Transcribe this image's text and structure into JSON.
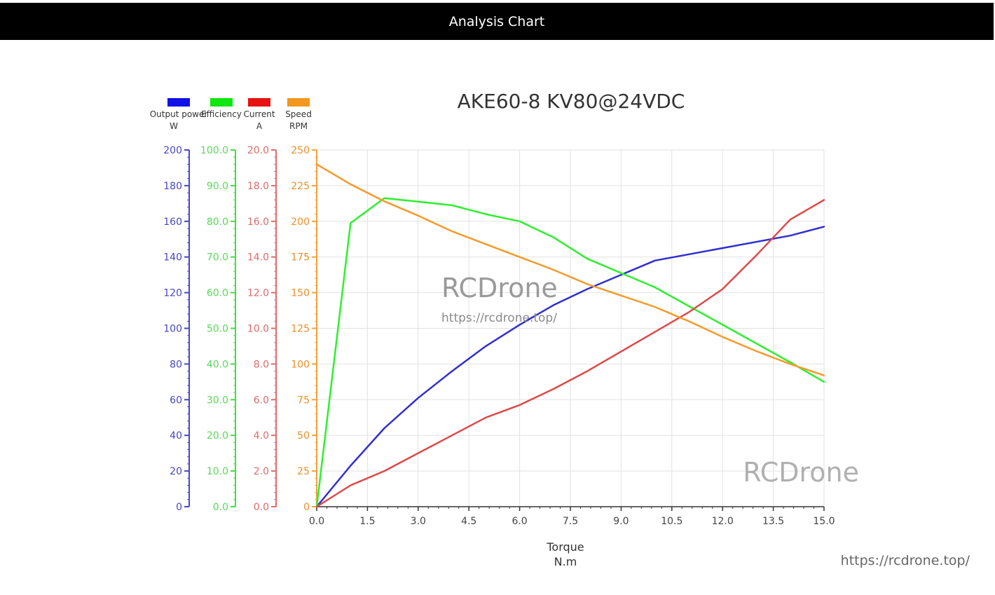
{
  "page": {
    "header_title": "Analysis Chart",
    "url": "https://rcdrone.top/",
    "watermark_main": "RCDrone",
    "watermark_url": "https://rcdrone.top/",
    "watermark_corner": "RCDrone"
  },
  "chart_data": {
    "type": "line",
    "title": "AKE60-8 KV80@24VDC",
    "xlabel": [
      "Torque",
      "N.m"
    ],
    "xlim": [
      0,
      15
    ],
    "xticks": [
      "0.0",
      "1.5",
      "3.0",
      "4.5",
      "6.0",
      "7.5",
      "9.0",
      "10.5",
      "12.0",
      "13.5",
      "15.0"
    ],
    "grid": true,
    "legend_position": "top-left",
    "series": [
      {
        "name": "Output power",
        "unit": "W",
        "color": "#2f2fd0",
        "ylim": [
          0,
          200
        ],
        "yticks": [
          "0",
          "20",
          "40",
          "60",
          "80",
          "100",
          "120",
          "140",
          "160",
          "180",
          "200"
        ],
        "x": [
          0,
          1,
          2,
          3,
          4,
          5,
          6,
          7,
          8,
          9,
          10,
          12,
          14,
          15
        ],
        "y": [
          0,
          23,
          44,
          61,
          76,
          90,
          102,
          113,
          122,
          130,
          138,
          145,
          152,
          157
        ]
      },
      {
        "name": "Efficiency",
        "unit": "",
        "color": "#2ef02e",
        "ylim": [
          0,
          100
        ],
        "yticks": [
          "0.0",
          "10.0",
          "20.0",
          "30.0",
          "40.0",
          "50.0",
          "60.0",
          "70.0",
          "80.0",
          "90.0",
          "100.0"
        ],
        "x": [
          0,
          1,
          2,
          3,
          4,
          5,
          6,
          7,
          8,
          10,
          12,
          14,
          15
        ],
        "y": [
          0,
          79.5,
          86.5,
          85.5,
          84.5,
          82,
          80,
          75.5,
          69.5,
          61.5,
          51,
          40.5,
          35
        ]
      },
      {
        "name": "Current",
        "unit": "A",
        "color": "#e04848",
        "ylim": [
          0,
          20
        ],
        "yticks": [
          "0.0",
          "2.0",
          "4.0",
          "6.0",
          "8.0",
          "10.0",
          "12.0",
          "14.0",
          "16.0",
          "18.0",
          "20.0"
        ],
        "x": [
          0,
          1,
          2,
          3,
          4,
          5,
          6,
          7,
          8,
          9,
          10,
          11,
          12,
          13,
          14,
          15
        ],
        "y": [
          0,
          1.2,
          2.0,
          3.0,
          4.0,
          5.0,
          5.7,
          6.6,
          7.6,
          8.7,
          9.8,
          10.9,
          12.2,
          14.1,
          16.1,
          17.2
        ]
      },
      {
        "name": "Speed",
        "unit": "RPM",
        "color": "#f59a2a",
        "ylim": [
          0,
          250
        ],
        "yticks": [
          "0",
          "25",
          "50",
          "75",
          "100",
          "125",
          "150",
          "175",
          "200",
          "225",
          "250"
        ],
        "x": [
          0,
          1,
          2,
          3,
          4,
          5,
          6,
          7,
          8,
          9,
          10,
          11,
          12,
          13,
          14,
          15
        ],
        "y": [
          240,
          226,
          214,
          204,
          193,
          184,
          175,
          166,
          156,
          148,
          140,
          130,
          119,
          109,
          100,
          92
        ]
      }
    ]
  }
}
